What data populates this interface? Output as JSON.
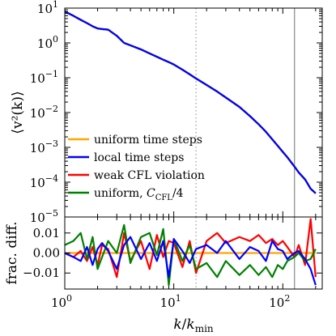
{
  "chart_data": [
    {
      "type": "line",
      "panel": "top",
      "ylabel": "⟨v²(k)⟩",
      "yscale": "log",
      "xscale": "log",
      "xlim": [
        1,
        230
      ],
      "ylim": [
        1e-05,
        10
      ],
      "yticks": [
        {
          "value": 10,
          "base": "10",
          "exp": "1"
        },
        {
          "value": 1,
          "base": "10",
          "exp": "0"
        },
        {
          "value": 0.1,
          "base": "10",
          "exp": "−1"
        },
        {
          "value": 0.01,
          "base": "10",
          "exp": "−2"
        },
        {
          "value": 0.001,
          "base": "10",
          "exp": "−3"
        },
        {
          "value": 0.0001,
          "base": "10",
          "exp": "−4"
        },
        {
          "value": 1e-05,
          "base": "10",
          "exp": "−5"
        }
      ],
      "vlines": [
        {
          "x": 16,
          "style": "dotted",
          "color": "#999999"
        },
        {
          "x": 128,
          "style": "solid",
          "color": "#888888"
        }
      ],
      "legend_position": "lower-left",
      "x": [
        1,
        1.2,
        1.4,
        1.6,
        1.8,
        2,
        2.2,
        2.5,
        3,
        3.5,
        4,
        5,
        6,
        7,
        8,
        9,
        10,
        12,
        14,
        16,
        20,
        25,
        30,
        40,
        50,
        60,
        70,
        80,
        90,
        100,
        110,
        128,
        140,
        160,
        180,
        200
      ],
      "series": [
        {
          "name": "uniform time steps",
          "color": "#ffa500",
          "values": [
            8,
            6,
            4.6,
            3.7,
            3.0,
            2.6,
            2.5,
            2.4,
            1.6,
            1.0,
            0.85,
            0.65,
            0.5,
            0.4,
            0.33,
            0.28,
            0.24,
            0.17,
            0.125,
            0.095,
            0.062,
            0.04,
            0.027,
            0.0145,
            0.0079,
            0.0046,
            0.0028,
            0.0017,
            0.0011,
            0.00074,
            0.00052,
            0.00028,
            0.00019,
            0.00012,
            6.5e-05,
            4.8e-05
          ]
        },
        {
          "name": "local time steps",
          "color": "#0000ff",
          "values": [
            8,
            6,
            4.6,
            3.7,
            3.0,
            2.6,
            2.5,
            2.4,
            1.6,
            1.0,
            0.85,
            0.65,
            0.5,
            0.4,
            0.33,
            0.28,
            0.24,
            0.17,
            0.125,
            0.095,
            0.062,
            0.04,
            0.027,
            0.0145,
            0.0079,
            0.0046,
            0.0028,
            0.0017,
            0.0011,
            0.00074,
            0.00052,
            0.00028,
            0.00019,
            0.00012,
            6.5e-05,
            4.8e-05
          ]
        },
        {
          "name": "weak CFL violation",
          "color": "#ff0000",
          "values": [
            8,
            6,
            4.6,
            3.7,
            3.0,
            2.6,
            2.5,
            2.4,
            1.6,
            1.0,
            0.85,
            0.65,
            0.5,
            0.4,
            0.33,
            0.28,
            0.24,
            0.17,
            0.125,
            0.095,
            0.062,
            0.04,
            0.027,
            0.0145,
            0.0079,
            0.0046,
            0.0028,
            0.0017,
            0.0011,
            0.00074,
            0.00052,
            0.00028,
            0.00019,
            0.00012,
            6.5e-05,
            4.8e-05
          ]
        },
        {
          "name": "uniform, ",
          "name_math": "C",
          "name_sub": "CFL",
          "name_tail": "/4",
          "color": "#008000",
          "values": [
            8,
            6,
            4.6,
            3.7,
            3.0,
            2.6,
            2.5,
            2.4,
            1.6,
            1.0,
            0.85,
            0.65,
            0.5,
            0.4,
            0.33,
            0.28,
            0.24,
            0.17,
            0.125,
            0.095,
            0.062,
            0.04,
            0.027,
            0.0145,
            0.0079,
            0.0046,
            0.0028,
            0.0017,
            0.0011,
            0.00074,
            0.00052,
            0.00028,
            0.00019,
            0.00012,
            6.5e-05,
            4.8e-05
          ]
        }
      ],
      "draw_order": [
        "uniform time steps",
        "weak CFL violation",
        "uniform, ",
        "local time steps"
      ]
    },
    {
      "type": "line",
      "panel": "bottom",
      "ylabel": "frac. diff.",
      "xlabel_main": "k",
      "xlabel_sub": "min",
      "xlabel_sep": "/",
      "xscale": "log",
      "xlim": [
        1,
        230
      ],
      "ylim": [
        -0.018,
        0.018
      ],
      "yticks": [
        {
          "value": 0.01,
          "label": "0.01"
        },
        {
          "value": 0.0,
          "label": "0.00"
        },
        {
          "value": -0.01,
          "label": "−0.01"
        }
      ],
      "xticks": [
        {
          "value": 1,
          "base": "10",
          "exp": "0"
        },
        {
          "value": 10,
          "base": "10",
          "exp": "1"
        },
        {
          "value": 100,
          "base": "10",
          "exp": "2"
        }
      ],
      "vlines": [
        {
          "x": 16,
          "style": "dotted",
          "color": "#999999"
        },
        {
          "x": 128,
          "style": "solid",
          "color": "#888888"
        }
      ],
      "x": [
        1,
        1.2,
        1.4,
        1.6,
        1.8,
        2,
        2.2,
        2.5,
        3,
        3.5,
        4,
        5,
        6,
        7,
        8,
        9,
        10,
        12,
        14,
        16,
        20,
        25,
        30,
        40,
        50,
        60,
        70,
        80,
        90,
        100,
        110,
        128,
        140,
        160,
        180,
        200
      ],
      "series": [
        {
          "name": "uniform time steps",
          "color": "#ffa500",
          "values": [
            0,
            0,
            0,
            0,
            0,
            0,
            0,
            0,
            0,
            0,
            0,
            0,
            0,
            0,
            0,
            0,
            0,
            0,
            0,
            0,
            0,
            0,
            0,
            0,
            0,
            0,
            0,
            0,
            0,
            0,
            0,
            0,
            0,
            0,
            0,
            0
          ]
        },
        {
          "name": "weak CFL violation",
          "color": "#ff0000",
          "values": [
            0.0,
            -0.002,
            0.001,
            -0.004,
            0.003,
            -0.006,
            0.004,
            0.002,
            -0.012,
            0.01,
            -0.004,
            0.006,
            -0.008,
            0.009,
            -0.002,
            0.006,
            0.005,
            -0.007,
            0.006,
            -0.01,
            0.006,
            0.01,
            0.005,
            0.008,
            0.006,
            0.009,
            0.005,
            0.007,
            0.004,
            0.006,
            0.003,
            -0.002,
            0.004,
            -0.006,
            0.017,
            -0.012
          ]
        },
        {
          "name": "uniform, ",
          "color": "#008000",
          "values": [
            0.004,
            0.006,
            0.01,
            -0.003,
            0.008,
            -0.008,
            -0.002,
            0.006,
            0.0,
            0.014,
            -0.005,
            0.008,
            0.01,
            -0.001,
            0.012,
            -0.016,
            0.007,
            -0.004,
            0.004,
            -0.008,
            -0.005,
            -0.012,
            -0.004,
            -0.011,
            -0.006,
            -0.011,
            -0.007,
            -0.012,
            -0.006,
            -0.008,
            -0.004,
            -0.002,
            0.0,
            -0.004,
            -0.003,
            0.002
          ]
        },
        {
          "name": "local time steps",
          "color": "#0000ff",
          "values": [
            0.0,
            -0.002,
            -0.004,
            0.003,
            -0.006,
            0.002,
            0.005,
            0.001,
            -0.008,
            0.004,
            0.008,
            -0.003,
            0.005,
            -0.004,
            0.006,
            -0.012,
            0.007,
            0.001,
            -0.005,
            0.002,
            0.004,
            0.0,
            0.006,
            -0.003,
            0.003,
            0.001,
            -0.004,
            0.006,
            0.002,
            0.001,
            -0.003,
            0.0,
            0.001,
            -0.003,
            -0.008,
            -0.016
          ]
        }
      ]
    }
  ]
}
